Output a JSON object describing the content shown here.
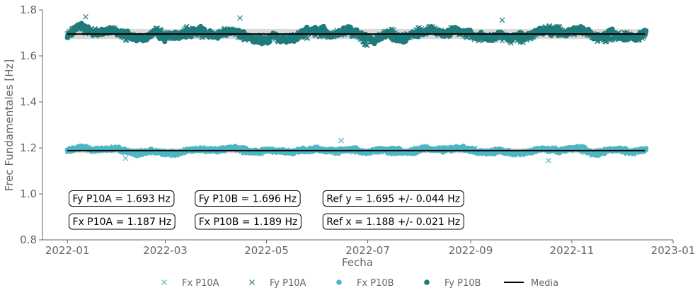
{
  "chart_data": {
    "type": "scatter",
    "xlabel": "Fecha",
    "ylabel": "Frec Fundamentales [Hz]",
    "xlim": [
      "2021-12-17",
      "2023-01-01"
    ],
    "ylim": [
      0.8,
      1.8
    ],
    "x_ticks": [
      "2022-01",
      "2022-03",
      "2022-05",
      "2022-07",
      "2022-09",
      "2022-11",
      "2023-01"
    ],
    "y_ticks": [
      "0.8",
      "1.0",
      "1.2",
      "1.4",
      "1.6",
      "1.8"
    ],
    "grid": false,
    "date_range": [
      "2022-01-01",
      "2022-12-15"
    ],
    "series": [
      {
        "name": "Fx P10A",
        "marker": "x",
        "color": "#4db6c4",
        "mean": 1.187
      },
      {
        "name": "Fy P10A",
        "marker": "x",
        "color": "#1e7b7a",
        "mean": 1.693
      },
      {
        "name": "Fx P10B",
        "marker": "circle",
        "color": "#4db6c4",
        "mean": 1.189
      },
      {
        "name": "Fy P10B",
        "marker": "circle",
        "color": "#1e7b7a",
        "mean": 1.696
      }
    ],
    "mean_lines": [
      {
        "y": 1.695,
        "band": 0.044
      },
      {
        "y": 1.188,
        "band": 0.021
      }
    ],
    "outliers": [
      {
        "series": 1,
        "date": "2022-01-12",
        "y": 1.77
      },
      {
        "series": 1,
        "date": "2022-04-15",
        "y": 1.765
      },
      {
        "series": 1,
        "date": "2022-09-20",
        "y": 1.755
      },
      {
        "series": 0,
        "date": "2022-06-15",
        "y": 1.232
      },
      {
        "series": 0,
        "date": "2022-10-18",
        "y": 1.145
      },
      {
        "series": 0,
        "date": "2022-02-05",
        "y": 1.155
      }
    ],
    "annotations": [
      {
        "text": "Fy P10A = 1.693 Hz",
        "date": "2022-01-02",
        "y": 0.98
      },
      {
        "text": "Fy P10B = 1.696 Hz",
        "date": "2022-03-19",
        "y": 0.98
      },
      {
        "text": "Ref y = 1.695 +/- 0.044 Hz",
        "date": "2022-06-04",
        "y": 0.98
      },
      {
        "text": "Fx P10A = 1.187 Hz",
        "date": "2022-01-02",
        "y": 0.88
      },
      {
        "text": "Fx P10B = 1.189 Hz",
        "date": "2022-03-19",
        "y": 0.88
      },
      {
        "text": "Ref x = 1.188 +/- 0.021 Hz",
        "date": "2022-06-04",
        "y": 0.88
      }
    ],
    "legend": {
      "placement": "bottom-center",
      "items": [
        {
          "label": "Fx P10A",
          "marker": "x",
          "color": "#4db6c4"
        },
        {
          "label": "Fy P10A",
          "marker": "x",
          "color": "#1e7b7a"
        },
        {
          "label": "Fx P10B",
          "marker": "circle",
          "color": "#4db6c4"
        },
        {
          "label": "Fy P10B",
          "marker": "circle",
          "color": "#1e7b7a"
        },
        {
          "label": "Media",
          "marker": "line",
          "color": "#000000"
        }
      ]
    },
    "band_color": "#d9d9d9",
    "axis_color": "#666666"
  }
}
